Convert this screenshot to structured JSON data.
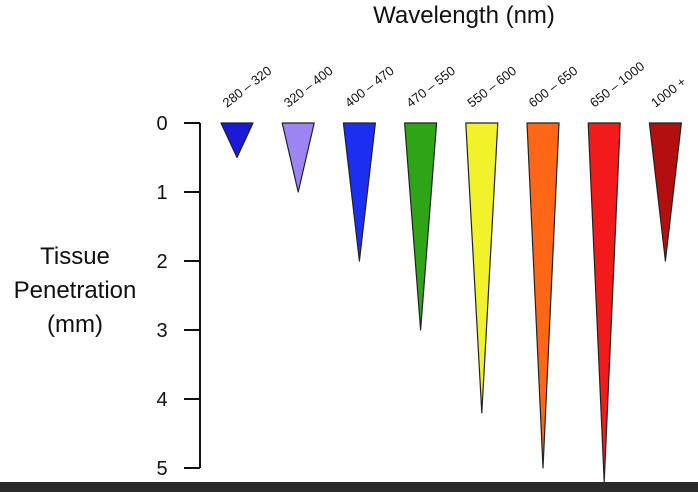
{
  "chart_data": {
    "type": "bar",
    "title": "Wavelength (nm)",
    "xlabel": "Wavelength (nm)",
    "ylabel_lines": [
      "Tissue",
      "Penetration",
      "(mm)"
    ],
    "categories": [
      "280 – 320",
      "320 – 400",
      "400 – 470",
      "470 – 550",
      "550 – 600",
      "600 – 650",
      "650 – 1000",
      "1000 +"
    ],
    "values": [
      0.5,
      1.0,
      2.0,
      3.0,
      4.2,
      5.0,
      5.2,
      2.0
    ],
    "colors": [
      "#1a1ad8",
      "#9b85f2",
      "#1c2ef0",
      "#2ea416",
      "#f2f22a",
      "#ff6616",
      "#f21b1b",
      "#b30f0f"
    ],
    "yticks": [
      0,
      1,
      2,
      3,
      4,
      5
    ],
    "ylim": [
      0,
      5
    ],
    "y_inverted": true,
    "grid": false,
    "legend": "none"
  }
}
